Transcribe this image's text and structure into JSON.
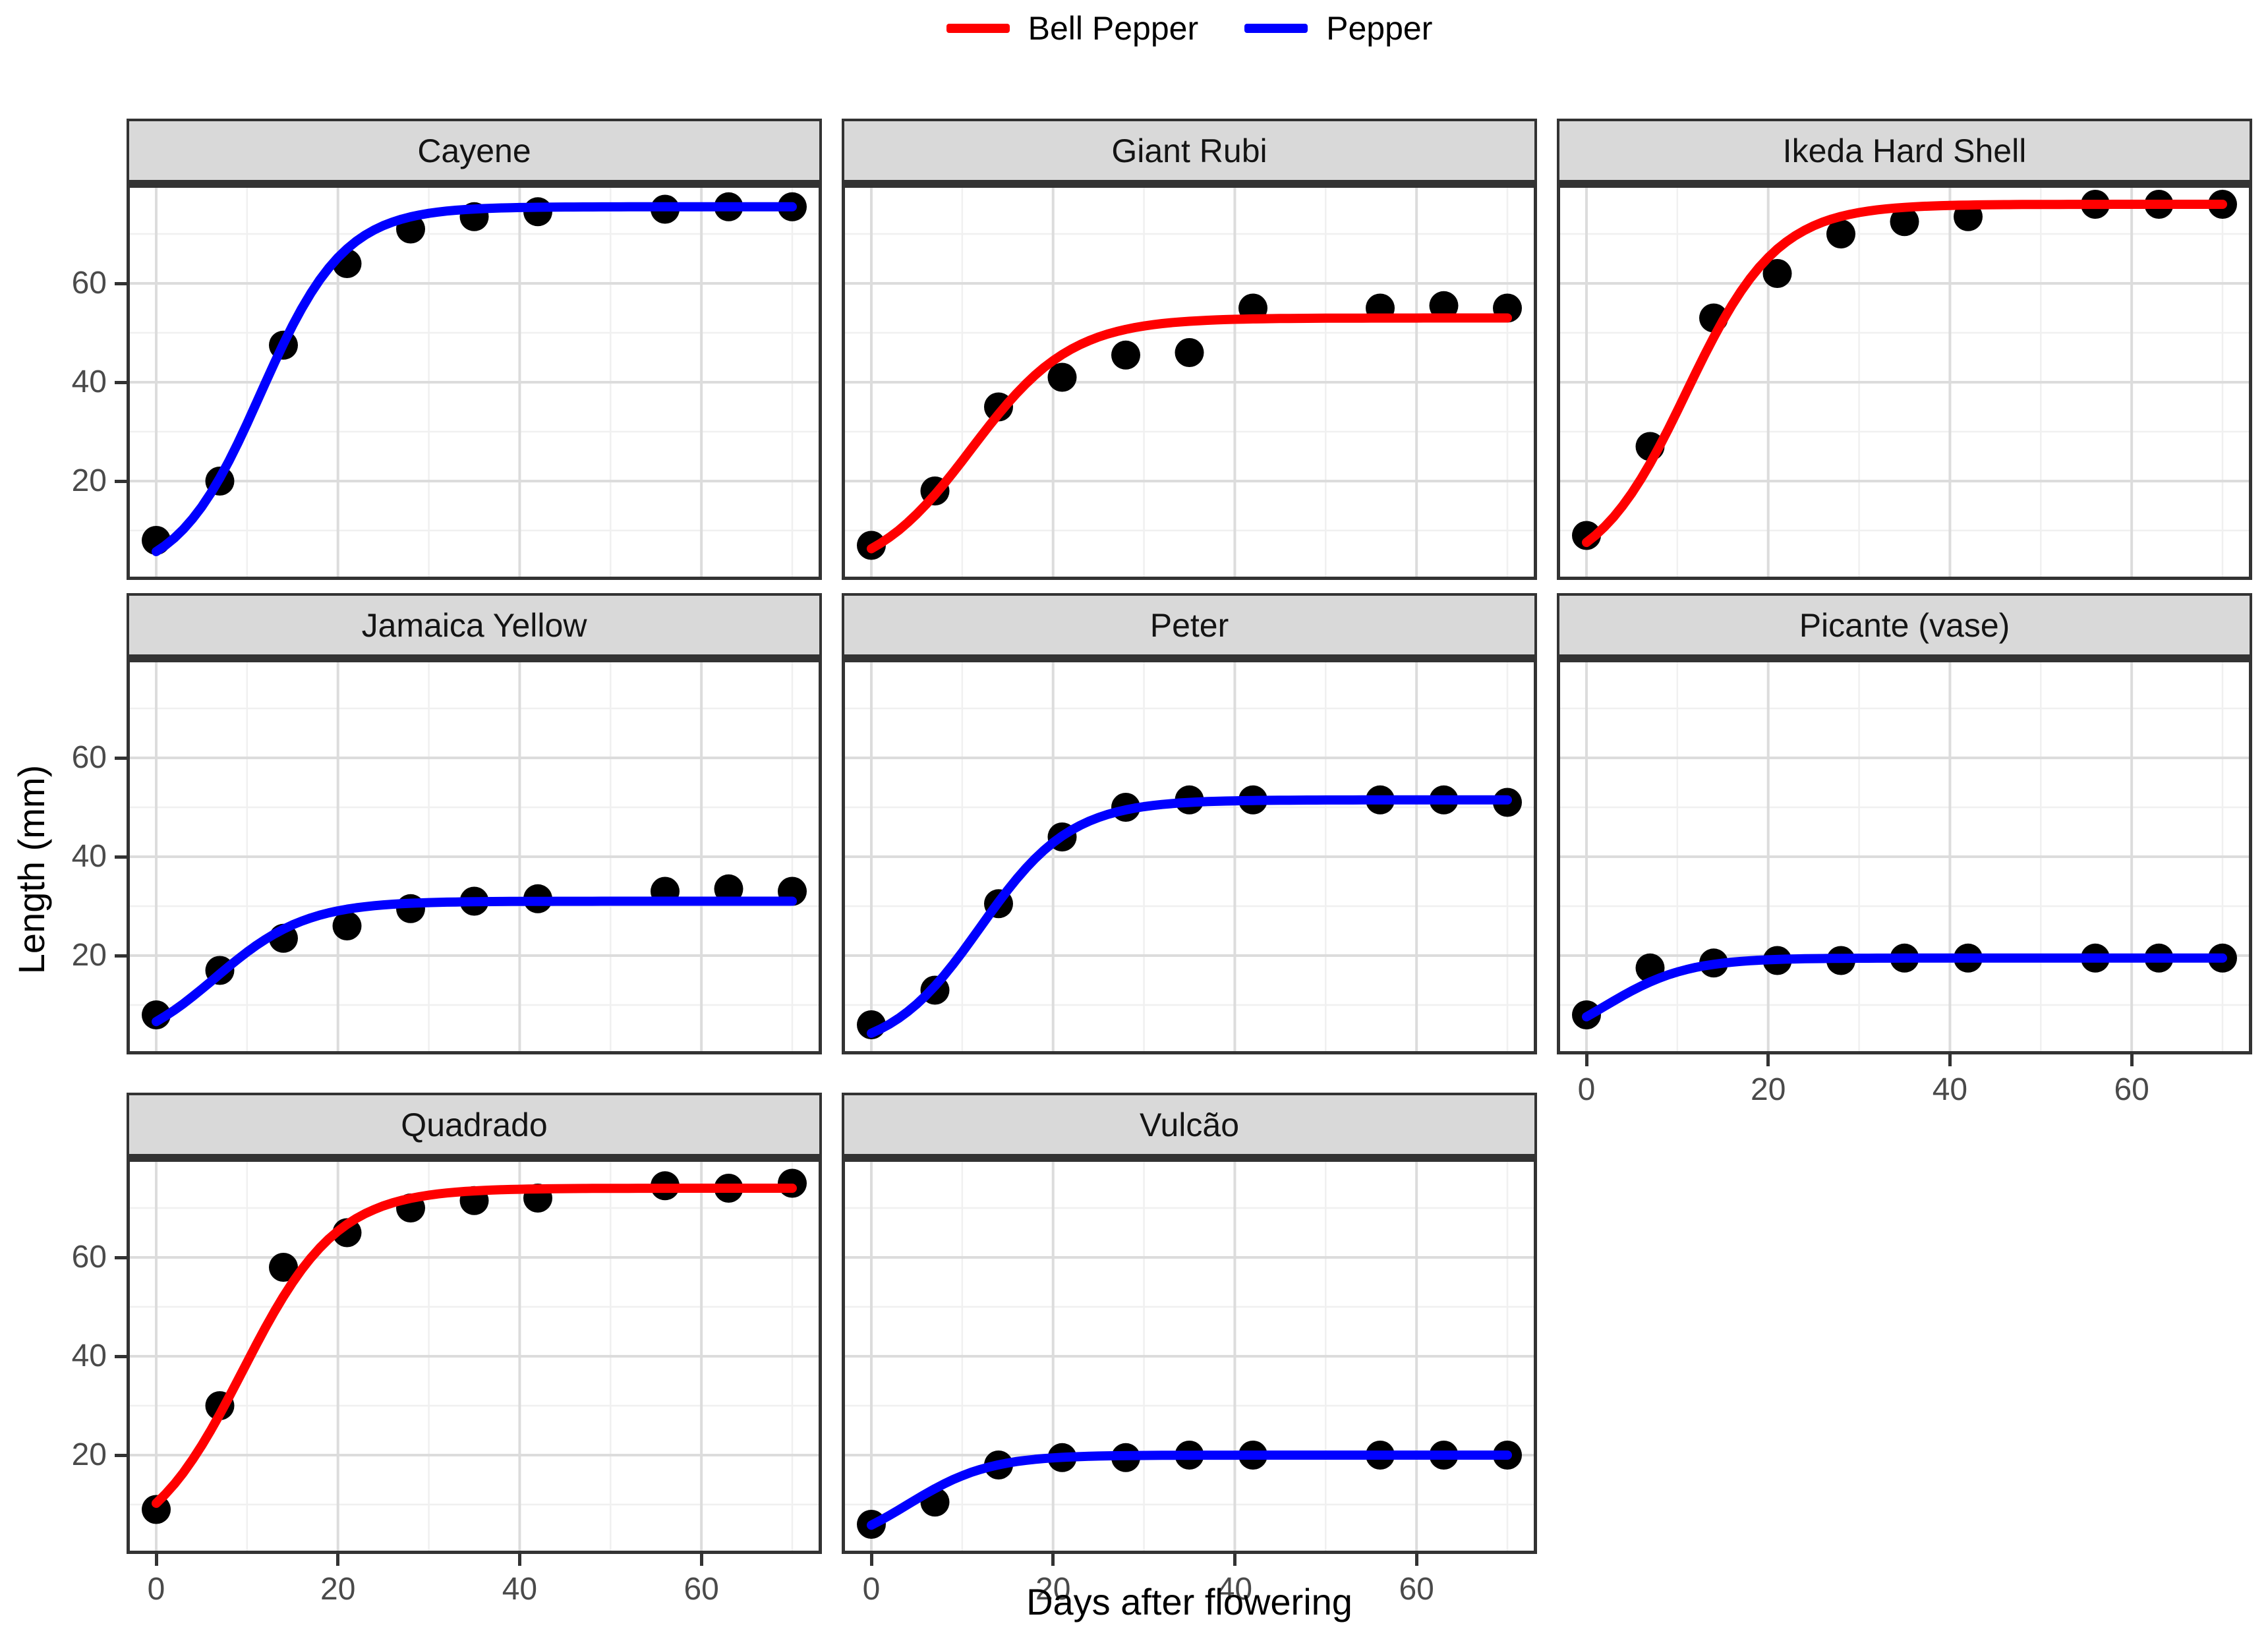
{
  "chart_data": {
    "type": "scatter",
    "title": "",
    "xlabel": "Days after flowering",
    "ylabel": "Length (mm)",
    "x": [
      0,
      7,
      14,
      21,
      28,
      35,
      42,
      56,
      63,
      70
    ],
    "xlim": [
      0,
      70
    ],
    "ylim": [
      0,
      80
    ],
    "x_ticks": [
      0,
      20,
      40,
      60
    ],
    "y_ticks": [
      20,
      40,
      60
    ],
    "minor_gridlines_x": [
      10,
      30,
      50,
      70
    ],
    "minor_gridlines_y": [
      10,
      30,
      50,
      70
    ],
    "grid": "on",
    "legend_position": "top",
    "legend": [
      {
        "name": "Bell Pepper",
        "color": "#FF0000"
      },
      {
        "name": "Pepper",
        "color": "#0000FF"
      }
    ],
    "facets": [
      {
        "title": "Cayene",
        "group": "Pepper",
        "color": "#0000FF",
        "values": [
          8,
          20,
          47.5,
          64,
          71,
          73.5,
          74.5,
          75,
          75.5,
          75.5
        ],
        "curve": {
          "asym": 75.5,
          "xmid": 11.5,
          "scal": 4.6
        }
      },
      {
        "title": "Giant Rubi",
        "group": "Bell Pepper",
        "color": "#FF0000",
        "values": [
          7,
          18,
          35,
          41,
          45.5,
          46,
          55,
          55,
          55.5,
          55
        ],
        "curve": {
          "asym": 53,
          "xmid": 11,
          "scal": 5.5
        }
      },
      {
        "title": "Ikeda Hard Shell",
        "group": "Bell Pepper",
        "color": "#FF0000",
        "values": [
          9,
          27,
          53,
          62,
          70,
          72.5,
          73.5,
          76,
          76,
          76
        ],
        "curve": {
          "asym": 76,
          "xmid": 11,
          "scal": 5
        }
      },
      {
        "title": "Jamaica Yellow",
        "group": "Pepper",
        "color": "#0000FF",
        "values": [
          8,
          17,
          23.5,
          26,
          29.5,
          31,
          31.5,
          33,
          33.5,
          33
        ],
        "curve": {
          "asym": 31,
          "xmid": 6.5,
          "scal": 5
        }
      },
      {
        "title": "Peter",
        "group": "Pepper",
        "color": "#0000FF",
        "values": [
          6,
          13,
          30.5,
          44,
          50,
          51.5,
          51.5,
          51.5,
          51.5,
          51
        ],
        "curve": {
          "asym": 51.5,
          "xmid": 12,
          "scal": 5
        }
      },
      {
        "title": "Picante (vase)",
        "group": "Pepper",
        "color": "#0000FF",
        "values": [
          8,
          17.5,
          18.5,
          19,
          19,
          19.5,
          19.5,
          19.5,
          19.5,
          19.5
        ],
        "curve": {
          "asym": 19.5,
          "xmid": 2,
          "scal": 4.5
        }
      },
      {
        "title": "Quadrado",
        "group": "Bell Pepper",
        "color": "#FF0000",
        "values": [
          9,
          30,
          58,
          65,
          70,
          71.5,
          72,
          74.5,
          74,
          75
        ],
        "curve": {
          "asym": 74,
          "xmid": 9.5,
          "scal": 5.2
        }
      },
      {
        "title": "Vulcão",
        "group": "Pepper",
        "color": "#0000FF",
        "values": [
          6,
          10.5,
          18,
          19.5,
          19.5,
          20,
          20,
          20,
          20,
          20
        ],
        "curve": {
          "asym": 20,
          "xmid": 4,
          "scal": 4.5
        }
      }
    ]
  },
  "style": {
    "point_color": "#000000",
    "strip_fill": "#D9D9D9",
    "panel_border": "#333333",
    "major_grid": "#DCDCDC",
    "minor_grid": "#F0F0F0",
    "tick_text": "#4a4a4a"
  }
}
